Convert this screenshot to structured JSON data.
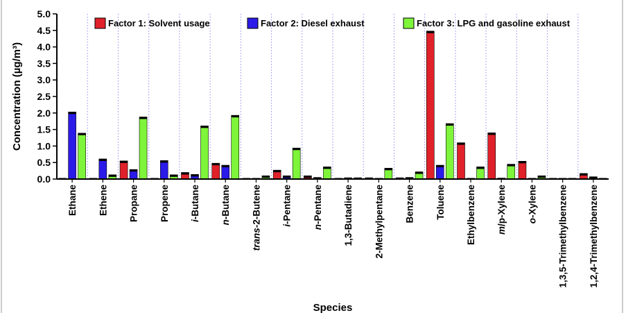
{
  "chart_data": {
    "type": "bar",
    "xlabel": "Species",
    "ylabel": "Concentration (µg/m³)",
    "ylim": [
      0,
      5.0
    ],
    "yticks": [
      "0.0",
      "0.5",
      "1.0",
      "1.5",
      "2.0",
      "2.5",
      "3.0",
      "3.5",
      "4.0",
      "4.5",
      "5.0"
    ],
    "grid": "vertical dotted separators between categories",
    "legend_position": "top",
    "categories": [
      {
        "pre": "",
        "it": "",
        "post": "Ethane"
      },
      {
        "pre": "",
        "it": "",
        "post": "Ethene"
      },
      {
        "pre": "",
        "it": "",
        "post": "Propane"
      },
      {
        "pre": "",
        "it": "",
        "post": "Propene"
      },
      {
        "pre": "",
        "it": "i",
        "post": "-Butane"
      },
      {
        "pre": "",
        "it": "n",
        "post": "-Butane"
      },
      {
        "pre": "",
        "it": "trans",
        "post": "-2-Butene"
      },
      {
        "pre": "",
        "it": "i",
        "post": "-Pentane"
      },
      {
        "pre": "",
        "it": "n",
        "post": "-Pentane"
      },
      {
        "pre": "",
        "it": "",
        "post": "1,3-Butadiene"
      },
      {
        "pre": "",
        "it": "",
        "post": "2-Methylpentane"
      },
      {
        "pre": "",
        "it": "",
        "post": "Benzene"
      },
      {
        "pre": "",
        "it": "",
        "post": "Toluene"
      },
      {
        "pre": "",
        "it": "",
        "post": "Ethylbenzene"
      },
      {
        "pre": "",
        "it": "m",
        "post": "/p-Xylene"
      },
      {
        "pre": "",
        "it": "o",
        "post": "-Xylene"
      },
      {
        "pre": "",
        "it": "",
        "post": "1,3,5-Trimethylbenzene"
      },
      {
        "pre": "",
        "it": "",
        "post": "1,2,4-Trimethylbenzene"
      }
    ],
    "series": [
      {
        "name": "Factor 1: Solvent usage",
        "color": "#e0212a",
        "values": [
          0.0,
          0.0,
          0.55,
          0.02,
          0.2,
          0.48,
          0.0,
          0.27,
          0.1,
          0.02,
          0.04,
          0.04,
          4.48,
          1.1,
          1.4,
          0.54,
          0.02,
          0.17
        ]
      },
      {
        "name": "Factor 2: Diesel exhaust",
        "color": "#2b1be8",
        "values": [
          2.03,
          0.61,
          0.29,
          0.56,
          0.14,
          0.42,
          0.02,
          0.1,
          0.05,
          0.04,
          0.02,
          0.05,
          0.42,
          0.0,
          0.03,
          0.02,
          0.02,
          0.07
        ]
      },
      {
        "name": "Factor 3: LPG and gasoline exhaust",
        "color": "#7ef53a",
        "values": [
          1.39,
          0.13,
          1.88,
          0.13,
          1.61,
          1.93,
          0.1,
          0.94,
          0.37,
          0.04,
          0.33,
          0.22,
          1.68,
          0.37,
          0.45,
          0.1,
          0.02,
          0.02
        ]
      }
    ]
  }
}
